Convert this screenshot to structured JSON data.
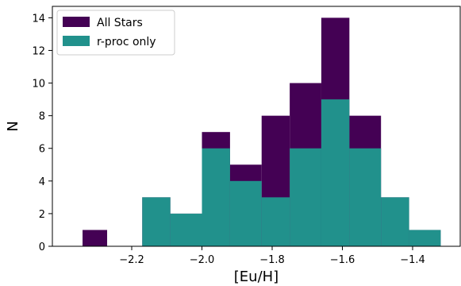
{
  "chart_data": {
    "type": "bar",
    "subtype": "histogram",
    "xlabel": "[Eu/H]",
    "ylabel": "N",
    "xlim": [
      -2.375,
      -2.0625
    ],
    "ylim": [
      0,
      14.7
    ],
    "x_ticks": [
      -2.2,
      -2.0,
      -1.8,
      -1.6,
      -1.4
    ],
    "x_tick_labels": [
      "−2.2",
      "−2.0",
      "−1.8",
      "−1.6",
      "−1.4"
    ],
    "y_ticks": [
      0,
      2,
      4,
      6,
      8,
      10,
      12,
      14
    ],
    "y_tick_labels": [
      "0",
      "2",
      "4",
      "6",
      "8",
      "10",
      "12",
      "14"
    ],
    "grid": false,
    "legend": "top-left",
    "series": [
      {
        "name": "All Stars",
        "color": "#440154",
        "bins": [
          {
            "x0": -2.34,
            "x1": -2.27,
            "value": 1
          },
          {
            "x0": -2.27,
            "x1": -2.17,
            "value": 0
          },
          {
            "x0": -2.17,
            "x1": -2.09,
            "value": 3
          },
          {
            "x0": -2.09,
            "x1": -2.0,
            "value": 2
          },
          {
            "x0": -2.0,
            "x1": -1.92,
            "value": 7
          },
          {
            "x0": -1.92,
            "x1": -1.83,
            "value": 5
          },
          {
            "x0": -1.83,
            "x1": -1.75,
            "value": 8
          },
          {
            "x0": -1.75,
            "x1": -1.66,
            "value": 10
          },
          {
            "x0": -1.66,
            "x1": -1.58,
            "value": 14
          },
          {
            "x0": -1.58,
            "x1": -1.49,
            "value": 8
          },
          {
            "x0": -1.49,
            "x1": -1.41,
            "value": 3
          },
          {
            "x0": -1.41,
            "x1": -1.32,
            "value": 1
          }
        ]
      },
      {
        "name": "r-proc only",
        "color": "#21918c",
        "bins": [
          {
            "x0": -2.34,
            "x1": -2.27,
            "value": 0
          },
          {
            "x0": -2.27,
            "x1": -2.17,
            "value": 0
          },
          {
            "x0": -2.17,
            "x1": -2.09,
            "value": 3
          },
          {
            "x0": -2.09,
            "x1": -2.0,
            "value": 2
          },
          {
            "x0": -2.0,
            "x1": -1.92,
            "value": 6
          },
          {
            "x0": -1.92,
            "x1": -1.83,
            "value": 4
          },
          {
            "x0": -1.83,
            "x1": -1.75,
            "value": 3
          },
          {
            "x0": -1.75,
            "x1": -1.66,
            "value": 6
          },
          {
            "x0": -1.66,
            "x1": -1.58,
            "value": 9
          },
          {
            "x0": -1.58,
            "x1": -1.49,
            "value": 6
          },
          {
            "x0": -1.49,
            "x1": -1.41,
            "value": 3
          },
          {
            "x0": -1.41,
            "x1": -1.32,
            "value": 1
          }
        ]
      }
    ]
  }
}
